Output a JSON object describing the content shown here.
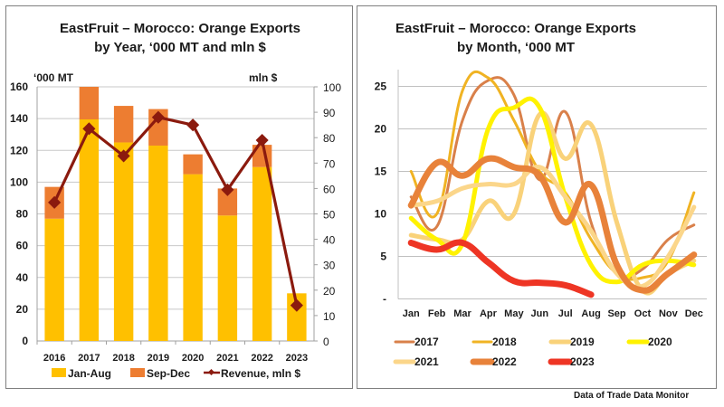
{
  "chart_data": [
    {
      "type": "bar",
      "title": "EastFruit – Morocco: Orange Exports",
      "subtitle": "by Year, ‘000 MT and mln $",
      "ylabel_left": "‘000 MT",
      "ylabel_right": "mln $",
      "ylim_left": [
        0,
        160
      ],
      "ylim_right": [
        0,
        100
      ],
      "yticks_left": [
        "0",
        "20",
        "40",
        "60",
        "80",
        "100",
        "120",
        "140",
        "160"
      ],
      "yticks_right": [
        "0",
        "10",
        "20",
        "30",
        "40",
        "50",
        "60",
        "70",
        "80",
        "90",
        "100"
      ],
      "categories": [
        "2016",
        "2017",
        "2018",
        "2019",
        "2020",
        "2021",
        "2022",
        "2023"
      ],
      "stacked": true,
      "grid": true,
      "legend_position": "bottom",
      "series": [
        {
          "name": "Jan-Aug",
          "type": "bar",
          "axis": "left",
          "color": "#FFC000",
          "values": [
            77,
            139.5,
            125,
            123,
            105,
            79,
            109.5,
            30
          ]
        },
        {
          "name": "Sep-Dec",
          "type": "bar",
          "axis": "left",
          "color": "#ED7D31",
          "values": [
            20,
            20.5,
            23,
            23,
            12.5,
            17,
            14,
            0
          ]
        },
        {
          "name": "Revenue, mln $",
          "type": "line",
          "axis": "right",
          "color": "#8B1A0E",
          "marker": "diamond",
          "values": [
            54.5,
            83.5,
            72.8,
            88,
            85,
            59.5,
            79,
            14
          ]
        }
      ]
    },
    {
      "type": "line",
      "title": "EastFruit – Morocco: Orange Exports",
      "subtitle": "by Month, ‘000 MT",
      "ylim": [
        0,
        27
      ],
      "yticks": [
        "-",
        "5",
        "10",
        "15",
        "20",
        "25"
      ],
      "categories": [
        "Jan",
        "Feb",
        "Mar",
        "Apr",
        "May",
        "Jun",
        "Jul",
        "Aug",
        "Sep",
        "Oct",
        "Nov",
        "Dec"
      ],
      "grid": true,
      "legend_position": "bottom",
      "series": [
        {
          "name": "2017",
          "color": "#D9804A",
          "width": "thin",
          "values": [
            12,
            8.5,
            21,
            25.7,
            24,
            14,
            22,
            9,
            3,
            3.5,
            7,
            8.7
          ]
        },
        {
          "name": "2018",
          "color": "#F0B323",
          "width": "thin",
          "values": [
            15,
            10,
            24.5,
            26,
            21,
            15,
            12.5,
            7,
            3,
            2.5,
            4.5,
            12.5
          ]
        },
        {
          "name": "2019",
          "color": "#F9D27A",
          "width": "medium",
          "values": [
            7.5,
            7,
            7,
            11.5,
            10,
            21.7,
            16.5,
            20.5,
            9,
            1,
            3,
            4.5
          ]
        },
        {
          "name": "2020",
          "color": "#FFF200",
          "width": "medium",
          "values": [
            9.5,
            7,
            6.5,
            20,
            22.5,
            22.5,
            12,
            4,
            2,
            4,
            4.5,
            4
          ]
        },
        {
          "name": "2021",
          "color": "#FBD68A",
          "width": "medium",
          "values": [
            11,
            11.5,
            13,
            13.5,
            13.5,
            15.5,
            12,
            8,
            3,
            1.5,
            5,
            10.8
          ]
        },
        {
          "name": "2022",
          "color": "#E8823A",
          "width": "thick",
          "values": [
            11,
            16,
            14.5,
            16.5,
            15.5,
            14.5,
            9,
            13.4,
            4,
            1,
            3,
            5.2
          ]
        },
        {
          "name": "2023",
          "color": "#EE3524",
          "width": "thick",
          "values": [
            6.6,
            5.8,
            6.6,
            4.3,
            2.1,
            1.9,
            1.6,
            0.5
          ]
        }
      ]
    }
  ],
  "footnote": "Data of Trade Data Monitor"
}
